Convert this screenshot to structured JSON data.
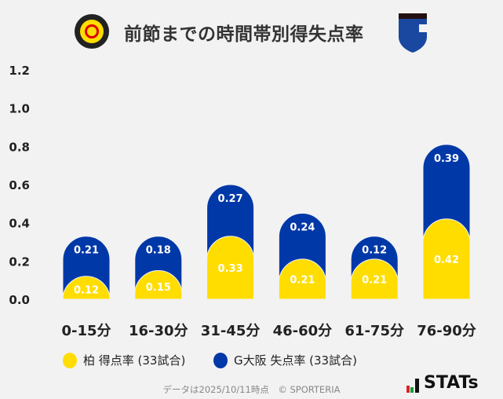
{
  "title": "前節までの時間帯別得失点率",
  "logos": {
    "left": "KASHIWA REYSOL",
    "right": "G"
  },
  "chart_data": {
    "type": "bar",
    "stacked": true,
    "categories": [
      "0-15分",
      "16-30分",
      "31-45分",
      "46-60分",
      "61-75分",
      "76-90分"
    ],
    "series": [
      {
        "name": "柏 得点率 (33試合)",
        "color": "#ffdd00",
        "values": [
          0.12,
          0.15,
          0.33,
          0.21,
          0.21,
          0.42
        ]
      },
      {
        "name": "G大阪 失点率 (33試合)",
        "color": "#0038a8",
        "values": [
          0.21,
          0.18,
          0.27,
          0.24,
          0.12,
          0.39
        ]
      }
    ],
    "yticks": [
      "0.0",
      "0.2",
      "0.4",
      "0.6",
      "0.8",
      "1.0",
      "1.2"
    ],
    "ylim": [
      0,
      1.2
    ],
    "grid": false,
    "legend": "bottom"
  },
  "legend": {
    "items": [
      "柏 得点率 (33試合)",
      "G大阪 失点率 (33試合)"
    ]
  },
  "footer": "データは2025/10/11時点　© SPORTERIA",
  "brand": "STATs"
}
